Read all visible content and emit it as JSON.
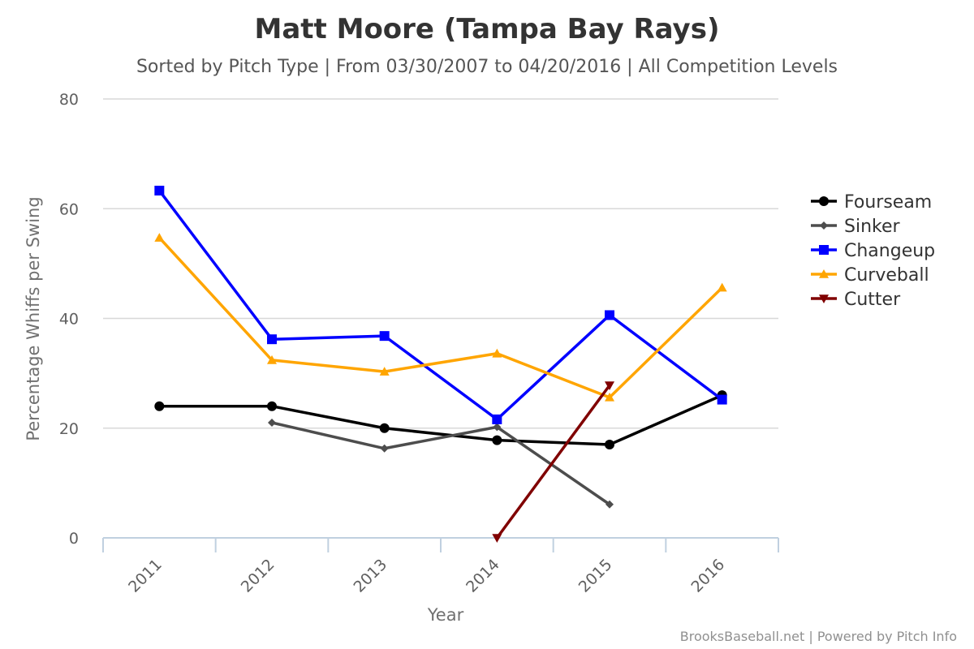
{
  "chart_data": {
    "type": "line",
    "title": "Matt Moore (Tampa Bay Rays)",
    "subtitle": "Sorted by Pitch Type | From 03/30/2007 to 04/20/2016 | All Competition Levels",
    "xlabel": "Year",
    "ylabel": "Percentage Whiffs per Swing",
    "categories": [
      "2011",
      "2012",
      "2013",
      "2014",
      "2015",
      "2016"
    ],
    "ylim": [
      0,
      80
    ],
    "yticks": [
      0,
      20,
      40,
      60,
      80
    ],
    "grid": true,
    "legend_position": "right",
    "series": [
      {
        "name": "Fourseam",
        "color": "#000000",
        "marker": "circle",
        "values": [
          24.0,
          24.0,
          20.0,
          17.8,
          17.0,
          26.0
        ]
      },
      {
        "name": "Sinker",
        "color": "#4d4d4d",
        "marker": "diamond",
        "values": [
          null,
          21.0,
          16.3,
          20.2,
          6.1,
          null
        ]
      },
      {
        "name": "Changeup",
        "color": "#0000ff",
        "marker": "square",
        "values": [
          63.3,
          36.2,
          36.8,
          21.6,
          40.6,
          25.2
        ]
      },
      {
        "name": "Curveball",
        "color": "#ffa500",
        "marker": "triangle",
        "values": [
          54.7,
          32.4,
          30.3,
          33.6,
          25.6,
          45.6
        ]
      },
      {
        "name": "Cutter",
        "color": "#800000",
        "marker": "triangle-down",
        "values": [
          null,
          null,
          null,
          0.0,
          27.8,
          null
        ]
      }
    ]
  },
  "credits": "BrooksBaseball.net | Powered by Pitch Info"
}
